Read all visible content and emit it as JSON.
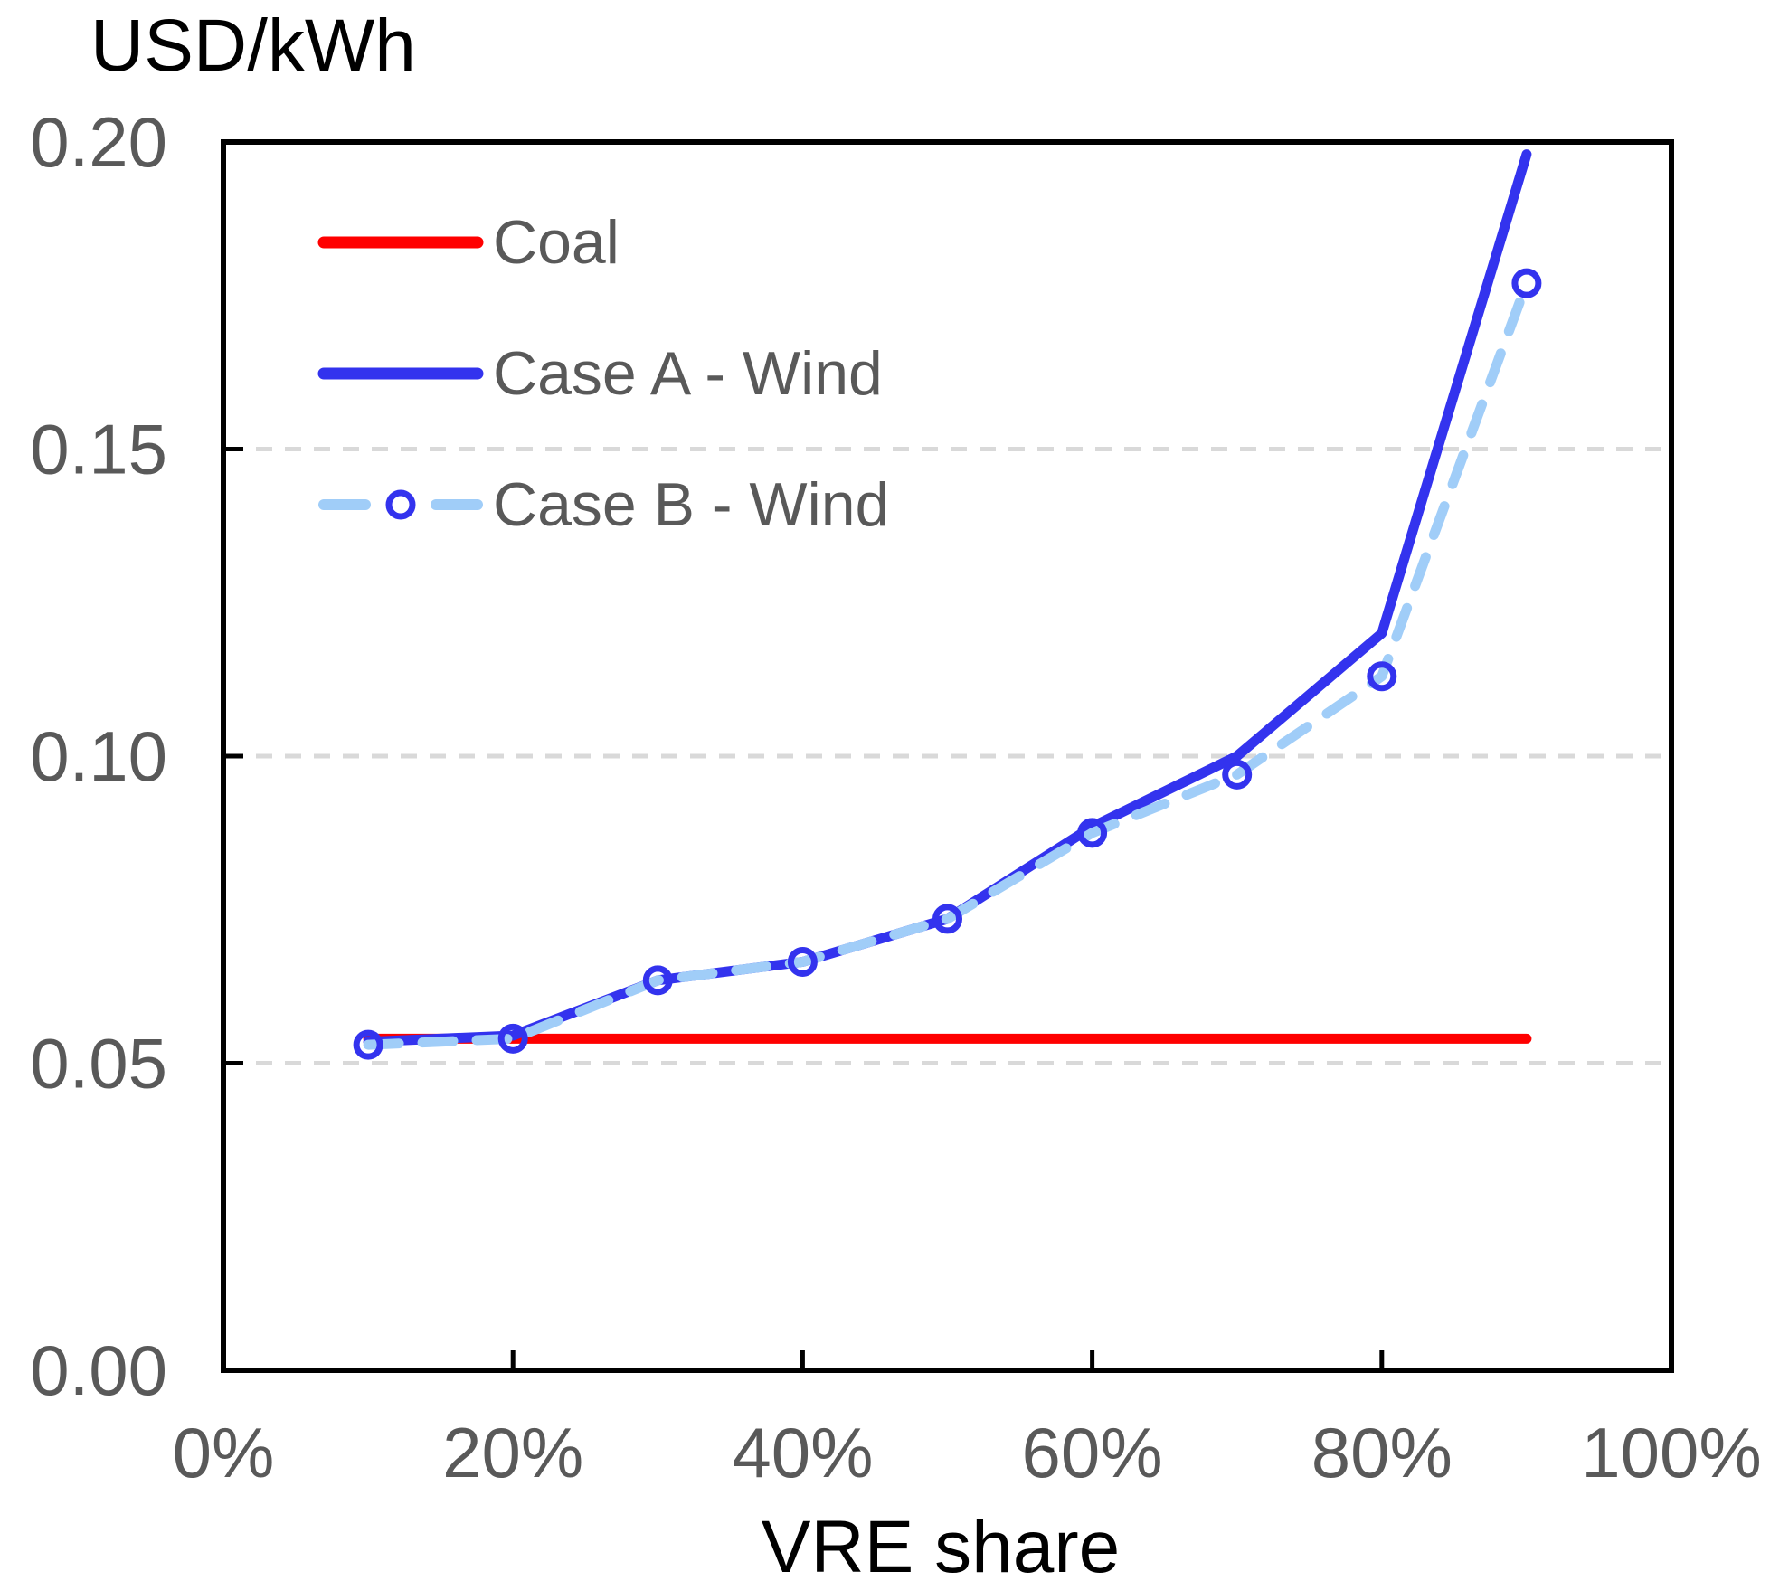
{
  "chart_data": {
    "type": "line",
    "title": "",
    "ylabel": "USD/kWh",
    "xlabel": "VRE share",
    "xlim": [
      0,
      100
    ],
    "ylim": [
      0,
      0.2
    ],
    "grid": "horizontal-dashed",
    "gridline_values": [
      0.05,
      0.1,
      0.15
    ],
    "legend_position": "inside-top-left",
    "x_percent": [
      10,
      20,
      30,
      40,
      50,
      60,
      70,
      80,
      90
    ],
    "xticks": [
      {
        "pos": 0,
        "label": "0%"
      },
      {
        "pos": 20,
        "label": "20%"
      },
      {
        "pos": 40,
        "label": "40%"
      },
      {
        "pos": 60,
        "label": "60%"
      },
      {
        "pos": 80,
        "label": "80%"
      },
      {
        "pos": 100,
        "label": "100%"
      }
    ],
    "yticks": [
      {
        "pos": 0.0,
        "label": "0.00"
      },
      {
        "pos": 0.05,
        "label": "0.05"
      },
      {
        "pos": 0.1,
        "label": "0.10"
      },
      {
        "pos": 0.15,
        "label": "0.15"
      },
      {
        "pos": 0.2,
        "label": "0.20"
      }
    ],
    "series": [
      {
        "name": "Coal",
        "color": "#FF0000",
        "style": "solid",
        "marker": "none",
        "values": [
          0.054,
          0.054,
          0.054,
          0.054,
          0.054,
          0.054,
          0.054,
          0.054,
          0.054
        ]
      },
      {
        "name": "Case A - Wind",
        "color": "#3333EE",
        "style": "solid",
        "marker": "none",
        "values": [
          0.0535,
          0.0545,
          0.0635,
          0.0665,
          0.0735,
          0.0885,
          0.1,
          0.12,
          0.198
        ]
      },
      {
        "name": "Case B - Wind",
        "color": "#A0CDF8",
        "style": "dashed",
        "marker": "circle",
        "marker_color": "#3333EE",
        "values": [
          0.053,
          0.054,
          0.0635,
          0.0665,
          0.0735,
          0.0875,
          0.097,
          0.113,
          0.177
        ]
      }
    ],
    "colors": {
      "frame": "#000000",
      "gridline": "#D9D9D9",
      "tick_label": "#595959",
      "axis_title": "#000000"
    }
  }
}
